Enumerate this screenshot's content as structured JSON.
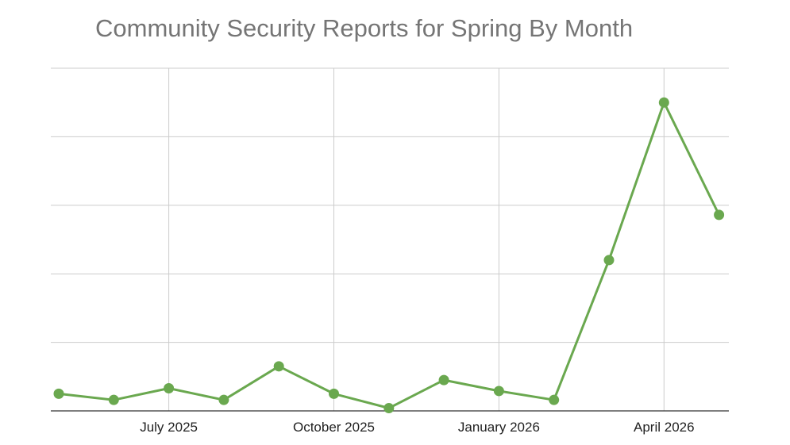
{
  "chart_data": {
    "type": "line",
    "title": "Community Security Reports for Spring By Month",
    "xlabel": "",
    "ylabel": "",
    "x": [
      "2025-05",
      "2025-06",
      "2025-07",
      "2025-08",
      "2025-09",
      "2025-10",
      "2025-11",
      "2025-12",
      "2026-01",
      "2026-02",
      "2026-03",
      "2026-04",
      "2026-05"
    ],
    "x_tick_labels": [
      {
        "x": "2025-07",
        "label": "July 2025"
      },
      {
        "x": "2025-10",
        "label": "October 2025"
      },
      {
        "x": "2026-01",
        "label": "January 2026"
      },
      {
        "x": "2026-04",
        "label": "April 2026"
      }
    ],
    "series": [
      {
        "values": [
          2.5,
          1.6,
          3.3,
          1.6,
          6.5,
          2.5,
          0.4,
          4.5,
          2.9,
          1.6,
          22.0,
          45.0,
          28.6
        ]
      }
    ],
    "ylim": [
      0,
      50
    ],
    "y_gridlines": [
      0,
      10,
      20,
      30,
      40,
      50
    ],
    "y_tick_labels_shown": false,
    "grid": true,
    "legend": "none",
    "colors": {
      "series": "#6aa84f",
      "grid": "#cccccc",
      "axis": "#333333",
      "title": "#757575"
    }
  }
}
